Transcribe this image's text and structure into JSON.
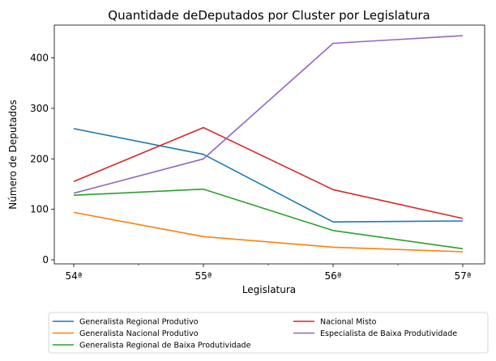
{
  "chart_data": {
    "type": "line",
    "title": "Quantidade deDeputados por Cluster por Legislatura",
    "xlabel": "Legislatura",
    "ylabel": "Número de Deputados",
    "categories": [
      "54ª",
      "55ª",
      "56ª",
      "57ª"
    ],
    "yticks": [
      0,
      100,
      200,
      300,
      400
    ],
    "ylim": [
      -8,
      465
    ],
    "grid": false,
    "legend_position": "bottom, below plot, 2 columns",
    "series": [
      {
        "name": "Generalista Regional Produtivo",
        "color": "#1f77b4",
        "values": [
          260,
          209,
          75,
          77
        ]
      },
      {
        "name": "Generalista Nacional Produtivo",
        "color": "#ff7f0e",
        "values": [
          94,
          46,
          25,
          16
        ]
      },
      {
        "name": "Generalista Regional de Baixa Produtividade",
        "color": "#2ca02c",
        "values": [
          128,
          140,
          58,
          22
        ]
      },
      {
        "name": "Nacional Misto",
        "color": "#d62728",
        "values": [
          155,
          262,
          139,
          82
        ]
      },
      {
        "name": "Especialista de Baixa Produtividade",
        "color": "#9467bd",
        "values": [
          132,
          200,
          429,
          444
        ]
      }
    ]
  }
}
